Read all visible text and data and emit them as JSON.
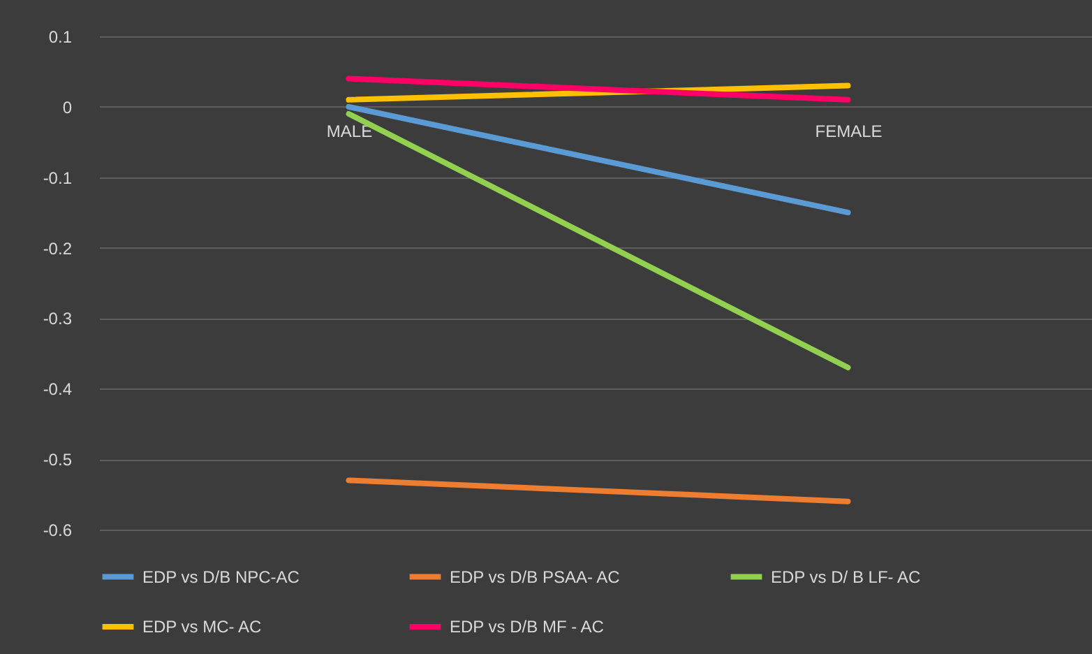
{
  "chart_data": {
    "type": "line",
    "categories": [
      "MALE",
      "FEMALE"
    ],
    "series": [
      {
        "name": "EDP vs D/B NPC-AC",
        "color": "#5b9bd5",
        "values": [
          0,
          -0.15
        ]
      },
      {
        "name": "EDP vs D/B PSAA- AC",
        "color": "#ed7d31",
        "values": [
          -0.53,
          -0.56
        ]
      },
      {
        "name": "EDP vs  D/ B LF- AC",
        "color": "#92d050",
        "values": [
          -0.01,
          -0.37
        ]
      },
      {
        "name": "EDP vs MC- AC",
        "color": "#ffc000",
        "values": [
          0.01,
          0.03
        ]
      },
      {
        "name": "EDP vs D/B MF - AC",
        "color": "#ff0066",
        "values": [
          0.04,
          0.01
        ]
      }
    ],
    "ylim": [
      -0.6,
      0.1
    ],
    "yticks": [
      -0.6,
      -0.5,
      -0.4,
      -0.3,
      -0.2,
      -0.1,
      0,
      0.1
    ],
    "grid": "y",
    "legend": "bottom"
  }
}
